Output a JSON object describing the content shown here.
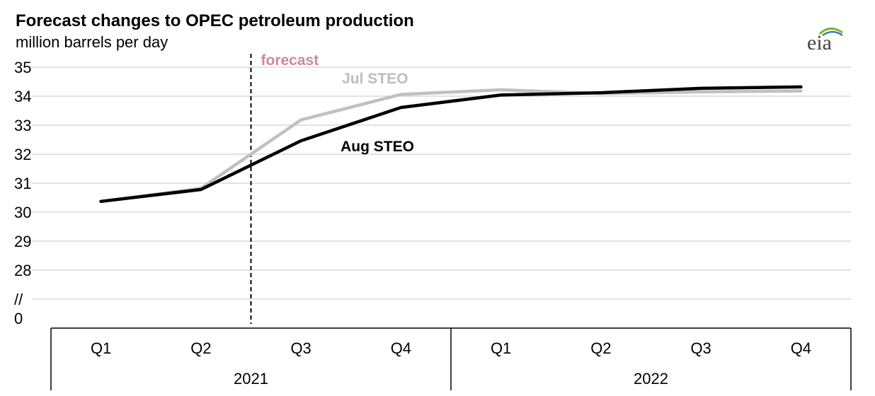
{
  "chart_data": {
    "type": "line",
    "title": "Forecast changes to OPEC petroleum production",
    "subtitle": "million barrels per day",
    "logo_text": "eia",
    "y_ticks": [
      "35",
      "34",
      "33",
      "32",
      "31",
      "30",
      "29",
      "28",
      "//",
      "0"
    ],
    "ylim": [
      28,
      35
    ],
    "axis_break": true,
    "categories": [
      "Q1",
      "Q2",
      "Q3",
      "Q4",
      "Q1",
      "Q2",
      "Q3",
      "Q4"
    ],
    "years": [
      {
        "label": "2021",
        "quarters": 4
      },
      {
        "label": "2022",
        "quarters": 4
      }
    ],
    "forecast_label": "forecast",
    "forecast_starts_between": [
      "Q2 2021",
      "Q3 2021"
    ],
    "series": [
      {
        "name": "Jul STEO",
        "color": "#c0c0c0",
        "values": [
          30.37,
          30.82,
          33.18,
          34.06,
          34.22,
          34.09,
          34.15,
          34.18
        ]
      },
      {
        "name": "Aug STEO",
        "color": "#000000",
        "values": [
          30.37,
          30.78,
          32.46,
          33.61,
          34.04,
          34.12,
          34.27,
          34.32
        ]
      }
    ],
    "grid": true,
    "colors": {
      "forecast": "#cd8a95",
      "grid": "#d9d9d9"
    }
  }
}
